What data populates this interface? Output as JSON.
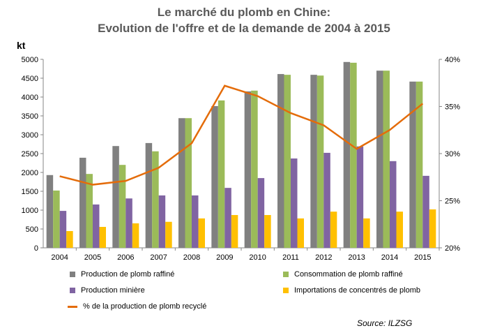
{
  "chart_data": {
    "type": "bar",
    "title": "Le marché du plomb en Chine:",
    "subtitle": "Evolution de l'offre et de la demande de 2004 à 2015",
    "ylabel": "kt",
    "ylim": [
      0,
      5000
    ],
    "yticks": [
      "0",
      "500",
      "1000",
      "1500",
      "2000",
      "2500",
      "3000",
      "3500",
      "4000",
      "4500",
      "5000"
    ],
    "y2lim": [
      20,
      40
    ],
    "y2ticks": [
      "20%",
      "25%",
      "30%",
      "35%",
      "40%"
    ],
    "grid": false,
    "legend": "bottom",
    "categories": [
      "2004",
      "2005",
      "2006",
      "2007",
      "2008",
      "2009",
      "2010",
      "2011",
      "2012",
      "2013",
      "2014",
      "2015"
    ],
    "series": [
      {
        "name": "Production de plomb raffiné",
        "type": "bar",
        "color": "#808080",
        "values": [
          1930,
          2390,
          2700,
          2780,
          3440,
          3760,
          4150,
          4610,
          4590,
          4930,
          4700,
          4410
        ]
      },
      {
        "name": "Consommation de plomb raffiné",
        "type": "bar",
        "color": "#9BBB59",
        "values": [
          1520,
          1960,
          2200,
          2560,
          3440,
          3910,
          4170,
          4590,
          4570,
          4910,
          4700,
          4410
        ]
      },
      {
        "name": "Production minière",
        "type": "bar",
        "color": "#8064A2",
        "values": [
          980,
          1150,
          1310,
          1390,
          1390,
          1590,
          1850,
          2370,
          2520,
          2690,
          2300,
          1910
        ]
      },
      {
        "name": "Importations de concentrés de plomb",
        "type": "bar",
        "color": "#FFC000",
        "values": [
          445,
          555,
          650,
          690,
          780,
          870,
          870,
          780,
          960,
          780,
          960,
          1020
        ]
      },
      {
        "name": "% de la production de plomb recyclé",
        "type": "line",
        "axis": "right",
        "color": "#E46C0A",
        "values": [
          27.6,
          26.7,
          27.1,
          28.5,
          31.1,
          37.2,
          36.1,
          34.3,
          33.0,
          30.5,
          32.5,
          35.3
        ]
      }
    ],
    "source": "Source: ILZSG"
  }
}
